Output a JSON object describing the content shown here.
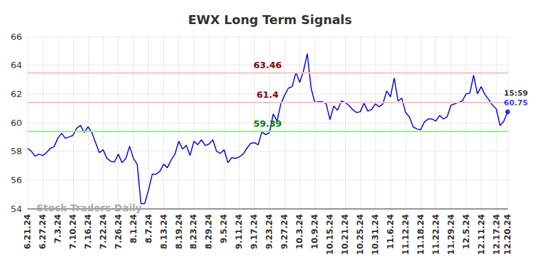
{
  "chart_data": {
    "type": "line",
    "title": "EWX Long Term Signals",
    "watermark": "Stock Traders Daily",
    "categories": [
      "6.21.24",
      null,
      null,
      null,
      "6.27.24",
      null,
      null,
      null,
      "7.3.24",
      null,
      null,
      null,
      "7.10.24",
      null,
      null,
      null,
      "7.16.24",
      null,
      null,
      null,
      "7.22.24",
      null,
      null,
      null,
      "7.26.24",
      null,
      null,
      null,
      "8.1.24",
      null,
      null,
      null,
      "8.7.24",
      null,
      null,
      null,
      "8.13.24",
      null,
      null,
      null,
      "8.19.24",
      null,
      null,
      null,
      "8.23.24",
      null,
      null,
      null,
      "8.29.24",
      null,
      null,
      null,
      "9.5.24",
      null,
      null,
      null,
      "9.11.24",
      null,
      null,
      null,
      "9.17.24",
      null,
      null,
      null,
      "9.23.24",
      null,
      null,
      null,
      "9.27.24",
      null,
      null,
      null,
      "10.3.24",
      null,
      null,
      null,
      "10.9.24",
      null,
      null,
      null,
      "10.15.24",
      null,
      null,
      null,
      "10.21.24",
      null,
      null,
      null,
      "10.25.24",
      null,
      null,
      null,
      "10.31.24",
      null,
      null,
      null,
      "11.6.24",
      null,
      null,
      null,
      "11.12.24",
      null,
      null,
      null,
      "11.18.24",
      null,
      null,
      null,
      "11.22.24",
      null,
      null,
      null,
      "11.29.24",
      null,
      null,
      null,
      "12.5.24",
      null,
      null,
      null,
      "12.11.24",
      null,
      null,
      null,
      "12.17.24",
      null,
      null,
      "12.20.24"
    ],
    "values": [
      58.2,
      58.0,
      57.65,
      57.8,
      57.7,
      57.9,
      58.2,
      58.3,
      58.9,
      59.25,
      58.9,
      59.0,
      59.1,
      59.6,
      59.8,
      59.3,
      59.7,
      59.3,
      58.6,
      57.9,
      58.1,
      57.5,
      57.3,
      57.25,
      57.8,
      57.2,
      57.5,
      58.35,
      57.5,
      57.1,
      54.35,
      54.35,
      55.3,
      56.4,
      56.4,
      56.6,
      57.1,
      56.85,
      57.4,
      57.8,
      58.7,
      58.15,
      58.4,
      57.7,
      58.7,
      58.45,
      58.8,
      58.4,
      58.5,
      58.8,
      58.0,
      57.85,
      58.1,
      57.2,
      57.55,
      57.5,
      57.6,
      57.8,
      58.2,
      58.55,
      58.6,
      58.45,
      59.35,
      59.15,
      59.3,
      60.6,
      60.1,
      61.3,
      61.9,
      62.4,
      62.5,
      63.5,
      62.8,
      63.6,
      64.8,
      62.4,
      61.4,
      61.45,
      61.45,
      61.3,
      60.2,
      61.15,
      60.85,
      61.5,
      61.4,
      61.2,
      60.9,
      60.7,
      60.75,
      61.35,
      60.8,
      60.9,
      61.3,
      61.1,
      61.3,
      62.2,
      61.8,
      63.1,
      61.5,
      61.7,
      60.7,
      60.4,
      59.7,
      59.55,
      59.5,
      60.05,
      60.25,
      60.25,
      60.1,
      60.5,
      60.25,
      60.4,
      61.2,
      61.3,
      61.4,
      61.5,
      62.0,
      62.05,
      63.3,
      62.0,
      62.5,
      61.95,
      61.6,
      61.2,
      60.95,
      59.8,
      60.1,
      60.75
    ],
    "color": "#0000ff",
    "ylim": [
      54,
      66
    ],
    "yticks": [
      54,
      56,
      58,
      60,
      62,
      64,
      66
    ],
    "grid": true,
    "reference_lines": [
      {
        "value": 63.46,
        "label": "63.46",
        "color": "#ffc0c0"
      },
      {
        "value": 61.4,
        "label": "61.4",
        "color": "#ffc0c0"
      },
      {
        "value": 59.39,
        "label": "59.39",
        "color": "#90ee90"
      }
    ],
    "last_point": {
      "time": "15:59",
      "value": 60.75
    }
  }
}
